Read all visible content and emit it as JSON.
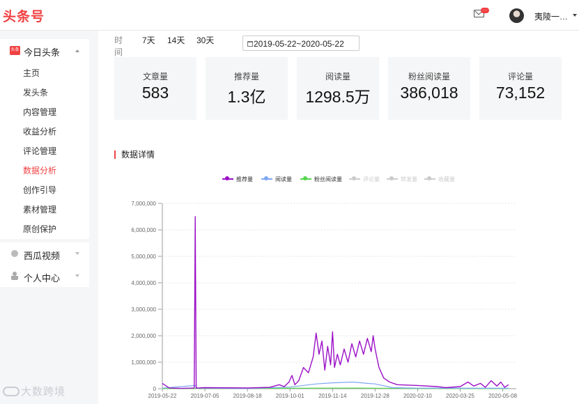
{
  "header": {
    "logo": "头条号",
    "mail_badge": "···",
    "username": "夷陵一…"
  },
  "sidebar": {
    "main_group": {
      "icon_text": "头条",
      "label": "今日头条",
      "items": [
        {
          "label": "主页"
        },
        {
          "label": "发头条"
        },
        {
          "label": "内容管理"
        },
        {
          "label": "收益分析"
        },
        {
          "label": "评论管理"
        },
        {
          "label": "数据分析",
          "active": true
        },
        {
          "label": "创作引导"
        },
        {
          "label": "素材管理"
        },
        {
          "label": "原创保护"
        }
      ]
    },
    "xigua": {
      "label": "西瓜视频"
    },
    "personal": {
      "label": "个人中心"
    }
  },
  "range": {
    "label": "时间",
    "options": [
      "7天",
      "14天",
      "30天"
    ],
    "date_range": "2019-05-22~2020-05-22"
  },
  "stats": [
    {
      "label": "文章量",
      "value": "583"
    },
    {
      "label": "推荐量",
      "value": "1.3亿"
    },
    {
      "label": "阅读量",
      "value": "1298.5万"
    },
    {
      "label": "粉丝阅读量",
      "value": "386,018"
    },
    {
      "label": "评论量",
      "value": "73,152"
    }
  ],
  "section_title": "数据详情",
  "chart_data": {
    "type": "line",
    "legend_position": "top-center",
    "grid": "horizontal dashed",
    "ylim": [
      0,
      7000000
    ],
    "y_ticks": [
      "7,000,000",
      "6,000,000",
      "5,000,000",
      "4,000,000",
      "3,000,000",
      "2,000,000",
      "1,000,000",
      "0"
    ],
    "x_start": "2019-05-22",
    "x_end": "2020-05-22",
    "x_ticks": [
      "2019-05-22",
      "2019-07-05",
      "2019-08-18",
      "2019-10-01",
      "2019-11-14",
      "2019-12-28",
      "2020-02-10",
      "2020-03-25",
      "2020-05-08"
    ],
    "series": [
      {
        "name": "推荐量",
        "color": "#9b10c6",
        "visible": true,
        "points": [
          [
            "2019-05-22",
            200000
          ],
          [
            "2019-05-26",
            100000
          ],
          [
            "2019-05-29",
            30000
          ],
          [
            "2019-06-10",
            10000
          ],
          [
            "2019-06-20",
            20000
          ],
          [
            "2019-06-24",
            30000
          ],
          [
            "2019-06-25",
            6500000
          ],
          [
            "2019-06-26",
            20000
          ],
          [
            "2019-07-05",
            40000
          ],
          [
            "2019-08-18",
            30000
          ],
          [
            "2019-09-10",
            50000
          ],
          [
            "2019-09-20",
            150000
          ],
          [
            "2019-09-25",
            80000
          ],
          [
            "2019-09-30",
            250000
          ],
          [
            "2019-10-03",
            500000
          ],
          [
            "2019-10-06",
            150000
          ],
          [
            "2019-10-10",
            300000
          ],
          [
            "2019-10-15",
            800000
          ],
          [
            "2019-10-20",
            600000
          ],
          [
            "2019-10-25",
            1200000
          ],
          [
            "2019-10-28",
            2100000
          ],
          [
            "2019-10-31",
            1300000
          ],
          [
            "2019-11-03",
            1800000
          ],
          [
            "2019-11-06",
            700000
          ],
          [
            "2019-11-09",
            1600000
          ],
          [
            "2019-11-12",
            900000
          ],
          [
            "2019-11-14",
            2150000
          ],
          [
            "2019-11-16",
            800000
          ],
          [
            "2019-11-19",
            1300000
          ],
          [
            "2019-11-22",
            900000
          ],
          [
            "2019-11-26",
            1500000
          ],
          [
            "2019-11-30",
            1000000
          ],
          [
            "2019-12-04",
            1700000
          ],
          [
            "2019-12-08",
            1200000
          ],
          [
            "2019-12-12",
            1800000
          ],
          [
            "2019-12-16",
            1300000
          ],
          [
            "2019-12-20",
            1900000
          ],
          [
            "2019-12-24",
            1400000
          ],
          [
            "2019-12-26",
            2000000
          ],
          [
            "2019-12-28",
            1500000
          ],
          [
            "2020-01-01",
            800000
          ],
          [
            "2020-01-06",
            400000
          ],
          [
            "2020-01-12",
            250000
          ],
          [
            "2020-01-20",
            150000
          ],
          [
            "2020-02-10",
            120000
          ],
          [
            "2020-03-01",
            80000
          ],
          [
            "2020-03-10",
            40000
          ],
          [
            "2020-03-25",
            80000
          ],
          [
            "2020-04-02",
            250000
          ],
          [
            "2020-04-08",
            100000
          ],
          [
            "2020-04-15",
            200000
          ],
          [
            "2020-04-20",
            50000
          ],
          [
            "2020-04-26",
            300000
          ],
          [
            "2020-05-02",
            100000
          ],
          [
            "2020-05-06",
            250000
          ],
          [
            "2020-05-10",
            50000
          ],
          [
            "2020-05-14",
            150000
          ]
        ]
      },
      {
        "name": "阅读量",
        "color": "#7da7f2",
        "visible": true,
        "points": [
          [
            "2019-05-22",
            20000
          ],
          [
            "2019-06-25",
            120000
          ],
          [
            "2019-06-27",
            20000
          ],
          [
            "2019-08-18",
            10000
          ],
          [
            "2019-10-01",
            60000
          ],
          [
            "2019-10-28",
            180000
          ],
          [
            "2019-11-14",
            220000
          ],
          [
            "2019-12-05",
            250000
          ],
          [
            "2019-12-20",
            200000
          ],
          [
            "2019-12-28",
            180000
          ],
          [
            "2020-01-15",
            40000
          ],
          [
            "2020-02-10",
            20000
          ],
          [
            "2020-05-14",
            15000
          ]
        ]
      },
      {
        "name": "粉丝阅读量",
        "color": "#55d64a",
        "visible": true,
        "points": [
          [
            "2019-05-22",
            5000
          ],
          [
            "2019-10-01",
            15000
          ],
          [
            "2019-12-10",
            25000
          ],
          [
            "2020-02-10",
            5000
          ],
          [
            "2020-05-14",
            3000
          ]
        ]
      },
      {
        "name": "评论量",
        "color": "#cccccc",
        "visible": false
      },
      {
        "name": "转发量",
        "color": "#cccccc",
        "visible": false
      },
      {
        "name": "收藏量",
        "color": "#cccccc",
        "visible": false
      }
    ]
  },
  "watermark": "大数跨境"
}
